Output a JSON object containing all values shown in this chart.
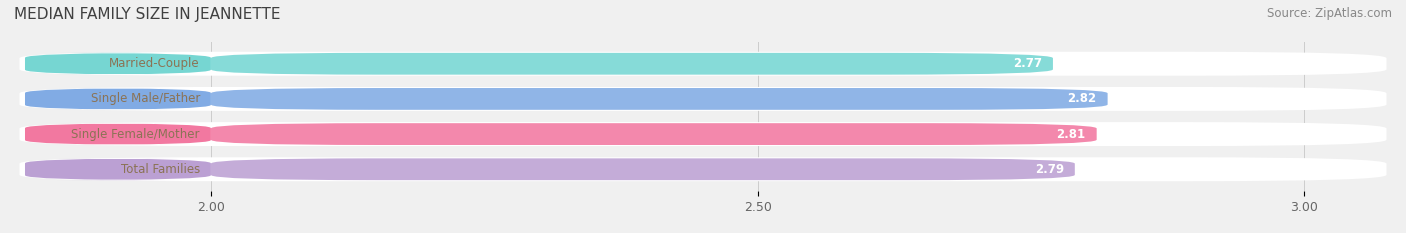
{
  "title": "MEDIAN FAMILY SIZE IN JEANNETTE",
  "source": "Source: ZipAtlas.com",
  "categories": [
    "Married-Couple",
    "Single Male/Father",
    "Single Female/Mother",
    "Total Families"
  ],
  "values": [
    2.77,
    2.82,
    2.81,
    2.79
  ],
  "bar_colors": [
    "#5ecfcb",
    "#6b9de0",
    "#f06090",
    "#b090cc"
  ],
  "label_text_color": "#8b7355",
  "background_color": "#f0f0f0",
  "xlim_min": 1.82,
  "xlim_max": 3.08,
  "data_min": 2.0,
  "xticks": [
    2.0,
    2.5,
    3.0
  ],
  "xtick_labels": [
    "2.00",
    "2.50",
    "3.00"
  ],
  "title_fontsize": 11,
  "label_fontsize": 8.5,
  "value_fontsize": 8.5,
  "source_fontsize": 8.5
}
